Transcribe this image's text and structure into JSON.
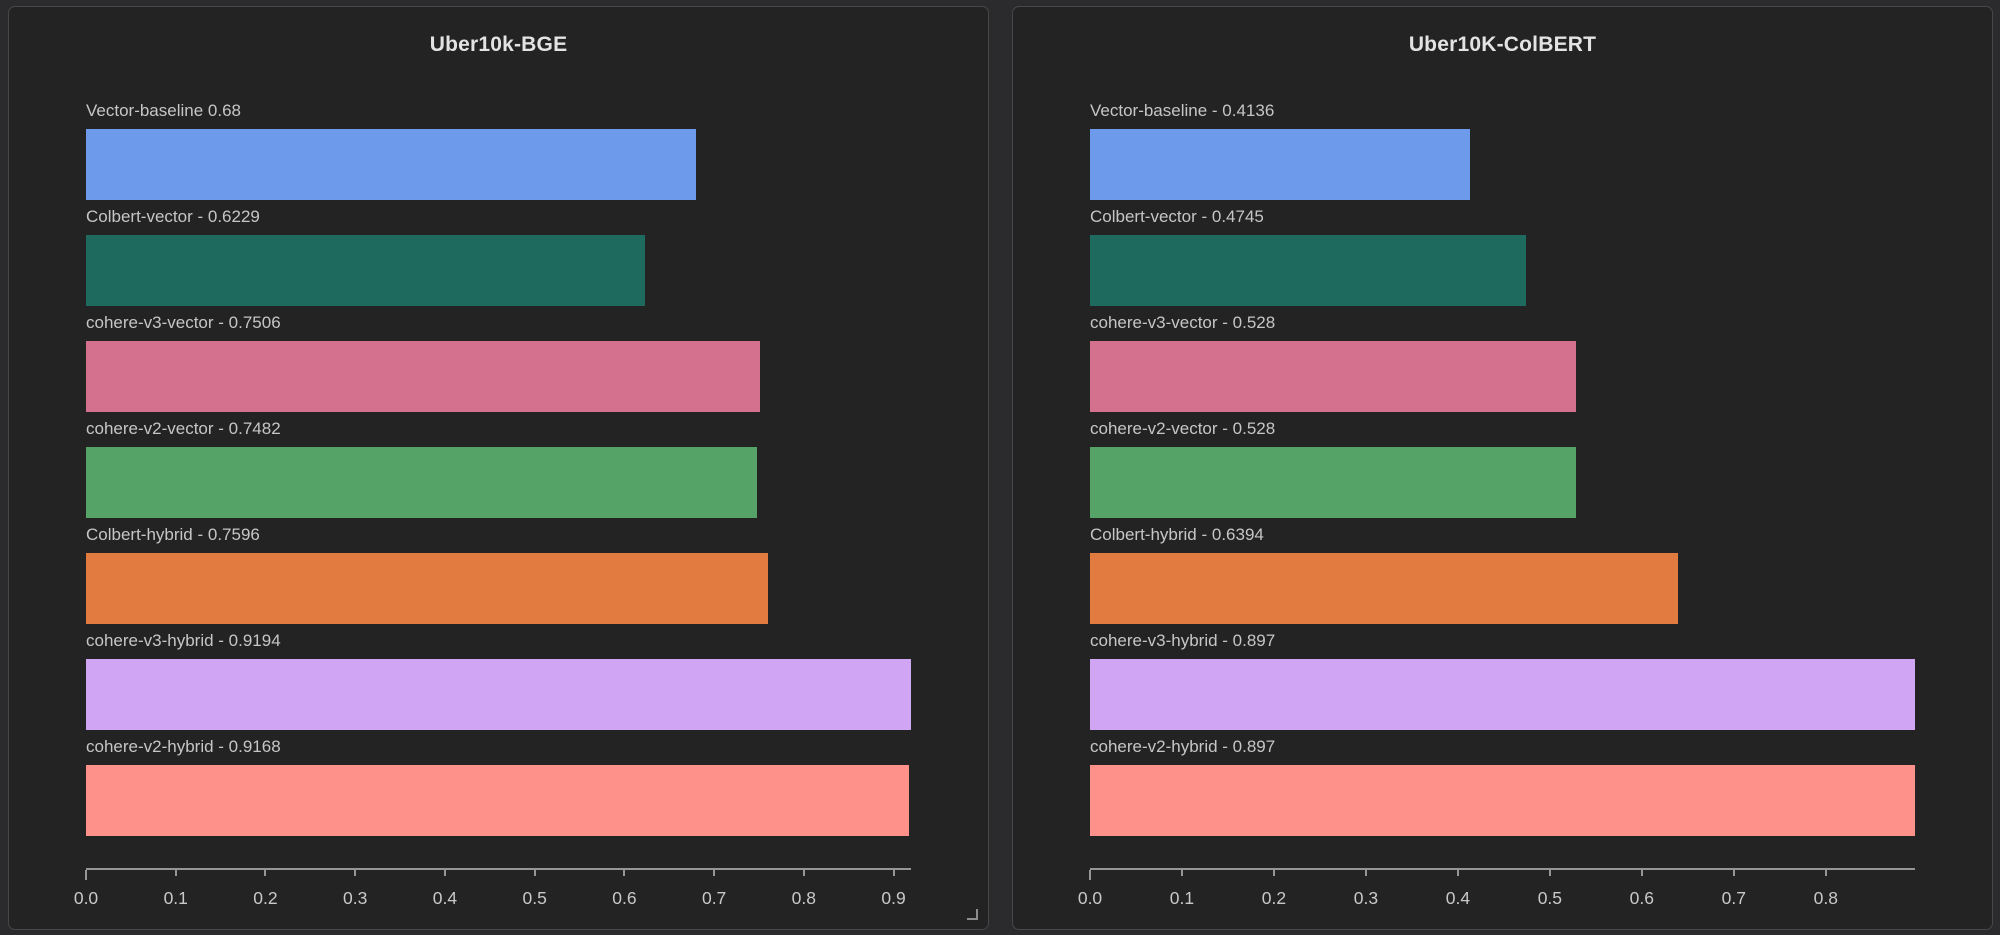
{
  "page": {
    "background": "#2b2b2d",
    "panel_background": "#232324",
    "panel_border": "#474748",
    "label_color": "#c6c6c6",
    "title_color": "#e3e3e3",
    "axis_color": "#969696"
  },
  "chart_data": [
    {
      "type": "bar",
      "orientation": "horizontal",
      "title": "Uber10k-BGE",
      "categories": [
        "Vector-baseline",
        "Colbert-vector",
        "cohere-v3-vector",
        "cohere-v2-vector",
        "Colbert-hybrid",
        "cohere-v3-hybrid",
        "cohere-v2-hybrid"
      ],
      "values": [
        0.68,
        0.6229,
        0.7506,
        0.7482,
        0.7596,
        0.9194,
        0.9168
      ],
      "bar_labels": [
        "Vector-baseline 0.68",
        "Colbert-vector - 0.6229",
        "cohere-v3-vector - 0.7506",
        "cohere-v2-vector - 0.7482",
        "Colbert-hybrid - 0.7596",
        "cohere-v3-hybrid - 0.9194",
        "cohere-v2-hybrid - 0.9168"
      ],
      "colors": [
        "#6d9aea",
        "#1f6a5e",
        "#d4718f",
        "#56a367",
        "#e17b3f",
        "#d0a5f4",
        "#fe918a"
      ],
      "xlim": [
        0,
        0.9194
      ],
      "x_ticks": [
        0,
        0.1,
        0.2,
        0.3,
        0.4,
        0.5,
        0.6,
        0.7,
        0.8,
        0.9
      ],
      "x_tick_labels": [
        "0.0",
        "0.1",
        "0.2",
        "0.3",
        "0.4",
        "0.5",
        "0.6",
        "0.7",
        "0.8",
        "0.9"
      ],
      "xlabel": "",
      "ylabel": "",
      "grid": false,
      "legend": false,
      "has_resize_grip": true
    },
    {
      "type": "bar",
      "orientation": "horizontal",
      "title": "Uber10K-ColBERT",
      "categories": [
        "Vector-baseline",
        "Colbert-vector",
        "cohere-v3-vector",
        "cohere-v2-vector",
        "Colbert-hybrid",
        "cohere-v3-hybrid",
        "cohere-v2-hybrid"
      ],
      "values": [
        0.4136,
        0.4745,
        0.528,
        0.528,
        0.6394,
        0.897,
        0.897
      ],
      "bar_labels": [
        "Vector-baseline - 0.4136",
        "Colbert-vector - 0.4745",
        "cohere-v3-vector - 0.528",
        "cohere-v2-vector - 0.528",
        "Colbert-hybrid - 0.6394",
        "cohere-v3-hybrid - 0.897",
        "cohere-v2-hybrid - 0.897"
      ],
      "colors": [
        "#6d9aea",
        "#1f6a5e",
        "#d4718f",
        "#56a367",
        "#e17b3f",
        "#d0a5f4",
        "#fe918a"
      ],
      "xlim": [
        0,
        0.897
      ],
      "x_ticks": [
        0,
        0.1,
        0.2,
        0.3,
        0.4,
        0.5,
        0.6,
        0.7,
        0.8
      ],
      "x_tick_labels": [
        "0.0",
        "0.1",
        "0.2",
        "0.3",
        "0.4",
        "0.5",
        "0.6",
        "0.7",
        "0.8"
      ],
      "xlabel": "",
      "ylabel": "",
      "grid": false,
      "legend": false,
      "has_resize_grip": false
    }
  ]
}
